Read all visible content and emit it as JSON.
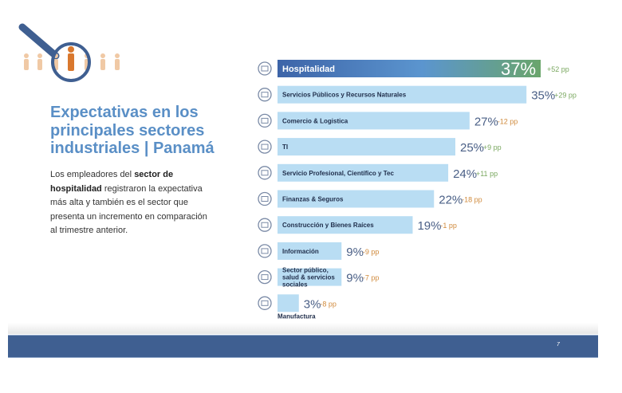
{
  "slide": {
    "title": "Expectativas en los principales sectores industriales | Panamá",
    "body_pre": "Los empleadores del ",
    "body_bold": "sector de hospitalidad",
    "body_post": " registraron la expectativa más alta y también es el sector que presenta un incremento en comparación al trimestre anterior.",
    "page_number": "7"
  },
  "colors": {
    "bar": "#b9ddf3",
    "highlight_start": "#3d64a8",
    "highlight_end": "#6aa56b",
    "positive": "#7aa860",
    "negative": "#d08a3c",
    "value": "#4a5f86",
    "footer": "#3f5f91"
  },
  "chart_data": {
    "type": "bar",
    "orientation": "horizontal",
    "categories": [
      "Hospitalidad",
      "Servicios Públicos y Recursos Naturales",
      "Comercio & Logistica",
      "TI",
      "Servicio Profesional, Científico y Tec",
      "Finanzas & Seguros",
      "Construcción y Bienes Raíces",
      "Información",
      "Sector público, salud & servicios sociales",
      "Manufactura"
    ],
    "values": [
      37,
      35,
      27,
      25,
      24,
      22,
      19,
      9,
      9,
      3
    ],
    "value_labels": [
      "37%",
      "35%",
      "27%",
      "25%",
      "24%",
      "22%",
      "19%",
      "9%",
      "9%",
      "3%"
    ],
    "changes": [
      "+52 pp",
      "+29 pp",
      "-12 pp",
      "+9 pp",
      "+11 pp",
      "-18 pp",
      "-1 pp",
      "-9 pp",
      "-7 pp",
      "-8 pp"
    ],
    "icons": [
      "service-bell-icon",
      "utilities-icon",
      "delivery-truck-icon",
      "laptop-icon",
      "microscope-icon",
      "finance-building-icon",
      "hard-hat-icon",
      "laptop-info-icon",
      "shield-cross-icon",
      "factory-icon"
    ],
    "highlight": "Hospitalidad",
    "unit": "%"
  }
}
